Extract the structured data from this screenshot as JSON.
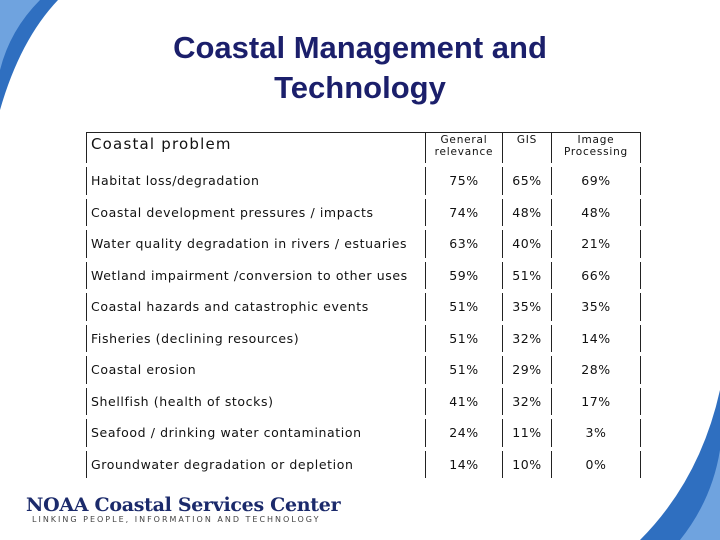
{
  "title": "Coastal Management and Technology",
  "table": {
    "header": [
      "Coastal problem",
      "General relevance",
      "GIS",
      "Image Processing"
    ],
    "rows": [
      [
        "Habitat loss/degradation",
        "75%",
        "65%",
        "69%"
      ],
      [
        "Coastal development pressures / impacts",
        "74%",
        "48%",
        "48%"
      ],
      [
        "Water quality degradation in rivers / estuaries",
        "63%",
        "40%",
        "21%"
      ],
      [
        "Wetland impairment /conversion to other uses",
        "59%",
        "51%",
        "66%"
      ],
      [
        "Coastal hazards and catastrophic events",
        "51%",
        "35%",
        "35%"
      ],
      [
        "Fisheries (declining resources)",
        "51%",
        "32%",
        "14%"
      ],
      [
        "Coastal erosion",
        "51%",
        "29%",
        "28%"
      ],
      [
        "Shellfish (health of stocks)",
        "41%",
        "32%",
        "17%"
      ],
      [
        "Seafood / drinking water contamination",
        "24%",
        "11%",
        "3%"
      ],
      [
        "Groundwater degradation or depletion",
        "14%",
        "10%",
        "0%"
      ]
    ]
  },
  "footer": {
    "logo": "NOAA Coastal Services Center",
    "tagline": "LINKING PEOPLE, INFORMATION AND TECHNOLOGY"
  }
}
